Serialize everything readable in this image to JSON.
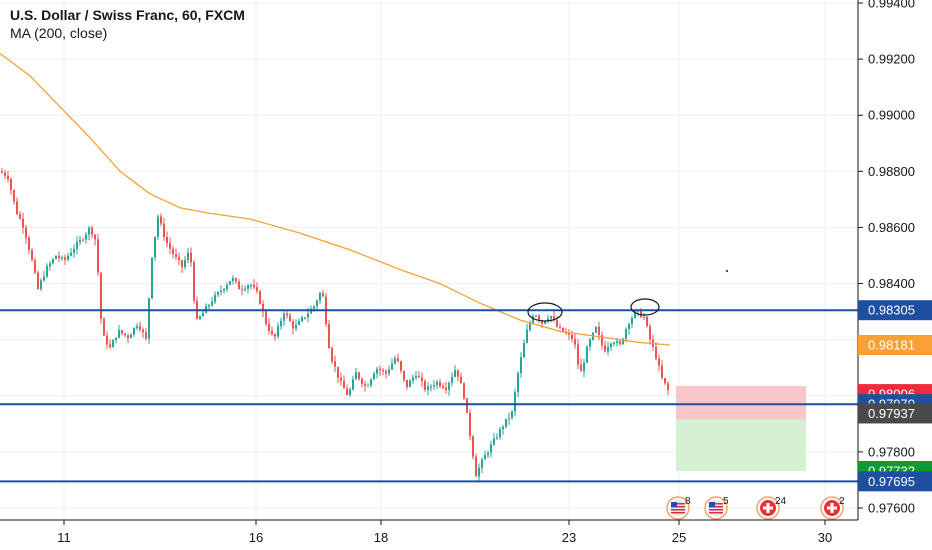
{
  "header": {
    "title": "U.S. Dollar / Swiss Franc, 60, FXCM",
    "indicator": "MA (200, close)"
  },
  "colors": {
    "up": "#26a69a",
    "down": "#ef5350",
    "ma": "#f9a037",
    "level_line": "#1e4fa0",
    "stop_zone": "#f8c5c8",
    "target_zone": "#d5efd2",
    "grid": "#eef0f3",
    "axis_border": "#131722"
  },
  "chart_data": {
    "type": "candlestick",
    "y_axis": {
      "range": [
        0.9753,
        0.9943
      ],
      "ticks": [
        "0.99400",
        "0.99200",
        "0.99000",
        "0.98800",
        "0.98600",
        "0.98400",
        "0.98200",
        "0.98000",
        "0.97800",
        "0.97600"
      ]
    },
    "x_axis": {
      "ticks": [
        "11",
        "16",
        "18",
        "23",
        "25",
        "30"
      ]
    },
    "horizontal_levels": [
      0.98305,
      0.9797,
      0.97695
    ],
    "price_tags": [
      {
        "label": "0.98305",
        "value": 0.98305,
        "bg": "#1e4fa0",
        "fg": "#ffffff"
      },
      {
        "label": "0.98181",
        "value": 0.98181,
        "bg": "#f9a037",
        "fg": "#ffffff"
      },
      {
        "label": "0.98006",
        "value": 0.98006,
        "bg": "#ef2b3c",
        "fg": "#ffffff"
      },
      {
        "label": "0.97970",
        "value": 0.9797,
        "bg": "#1e4fa0",
        "fg": "#ffffff"
      },
      {
        "label": "0.97937",
        "value": 0.97937,
        "bg": "#4a4a4a",
        "fg": "#ffffff"
      },
      {
        "label": "0.97732",
        "value": 0.97732,
        "bg": "#0b9b2f",
        "fg": "#ffffff"
      },
      {
        "label": "0.97695",
        "value": 0.97695,
        "bg": "#1e4fa0",
        "fg": "#ffffff"
      }
    ],
    "position": {
      "entry": 0.97937,
      "stop": 0.98006,
      "target": 0.97732
    },
    "events": [
      {
        "kind": "us-flag",
        "label": "8"
      },
      {
        "kind": "us-flag",
        "label": "5"
      },
      {
        "kind": "ch-flag",
        "label": "24"
      },
      {
        "kind": "ch-flag",
        "label": "2"
      }
    ]
  }
}
